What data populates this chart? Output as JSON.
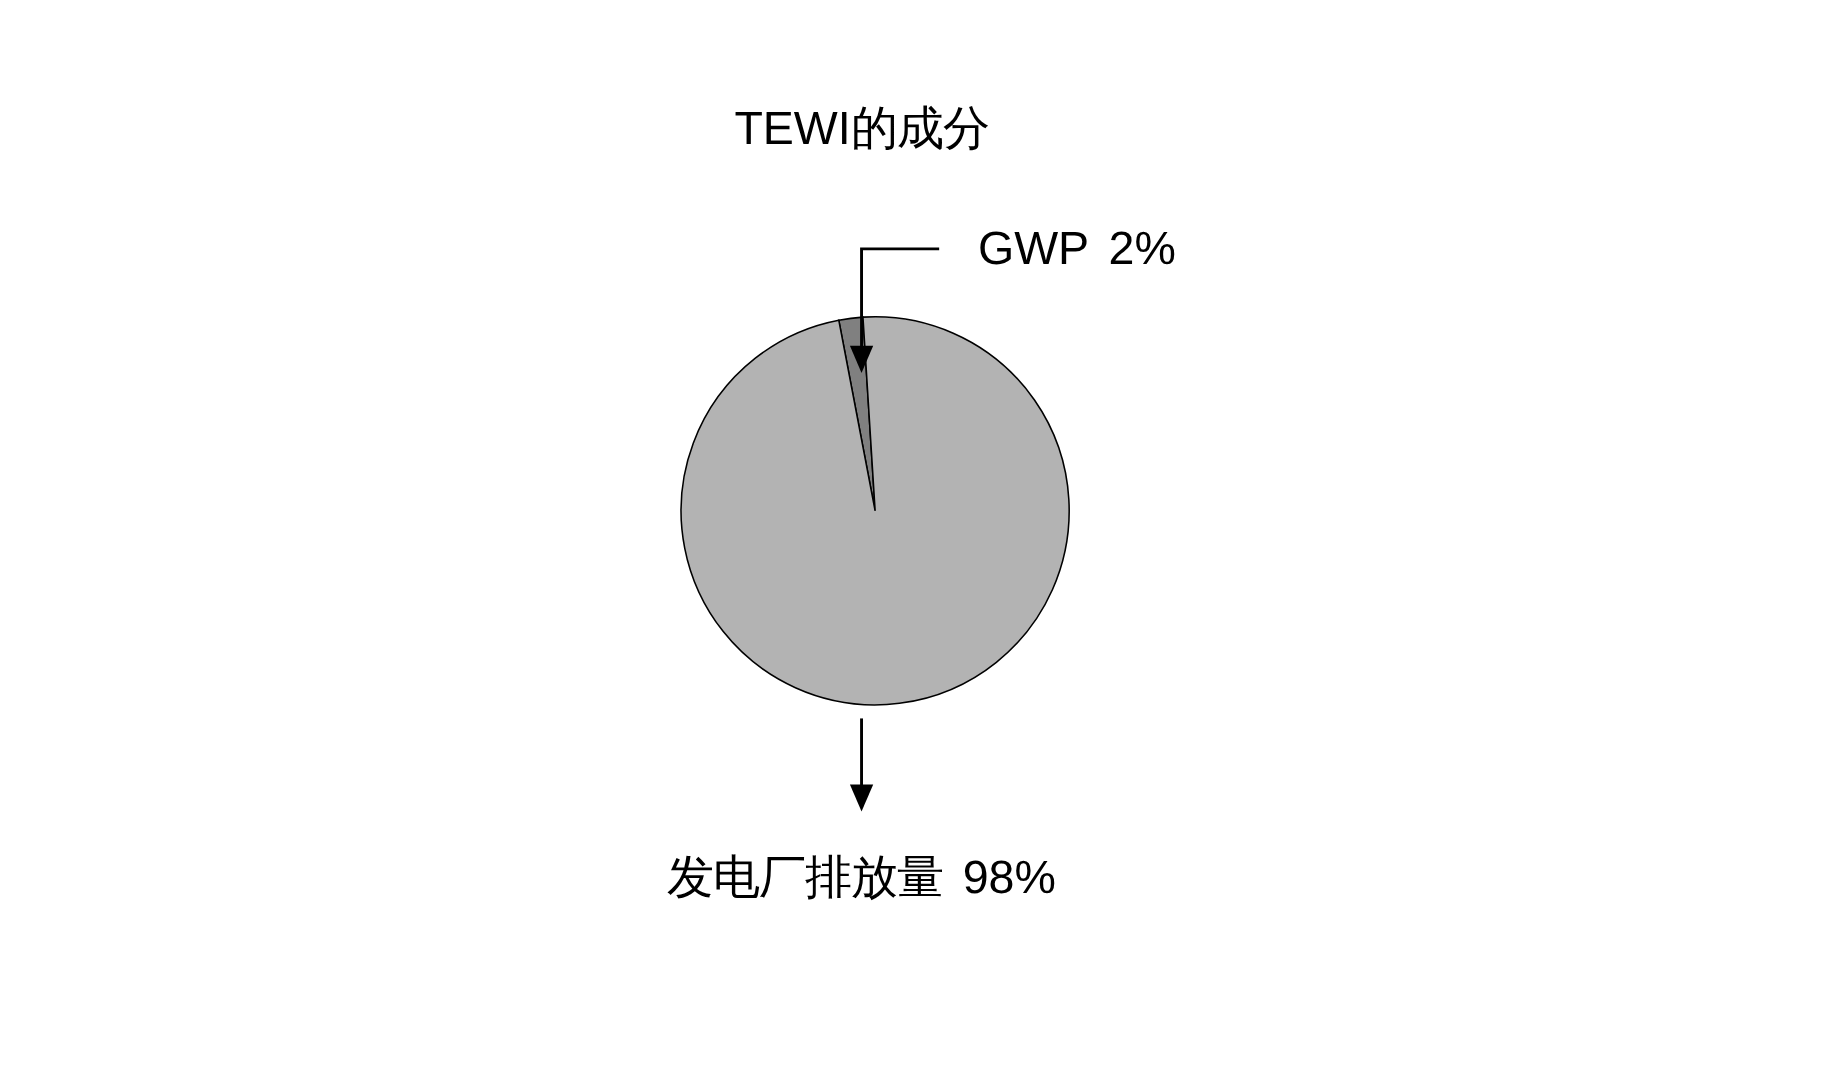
{
  "chart_data": {
    "type": "pie",
    "title": "TEWI的成分",
    "categories": [
      "GWP",
      "发电厂排放量"
    ],
    "values": [
      2,
      98
    ],
    "value_labels": [
      "2%",
      "98%"
    ],
    "colors": [
      "#808080",
      "#b3b3b3"
    ]
  }
}
